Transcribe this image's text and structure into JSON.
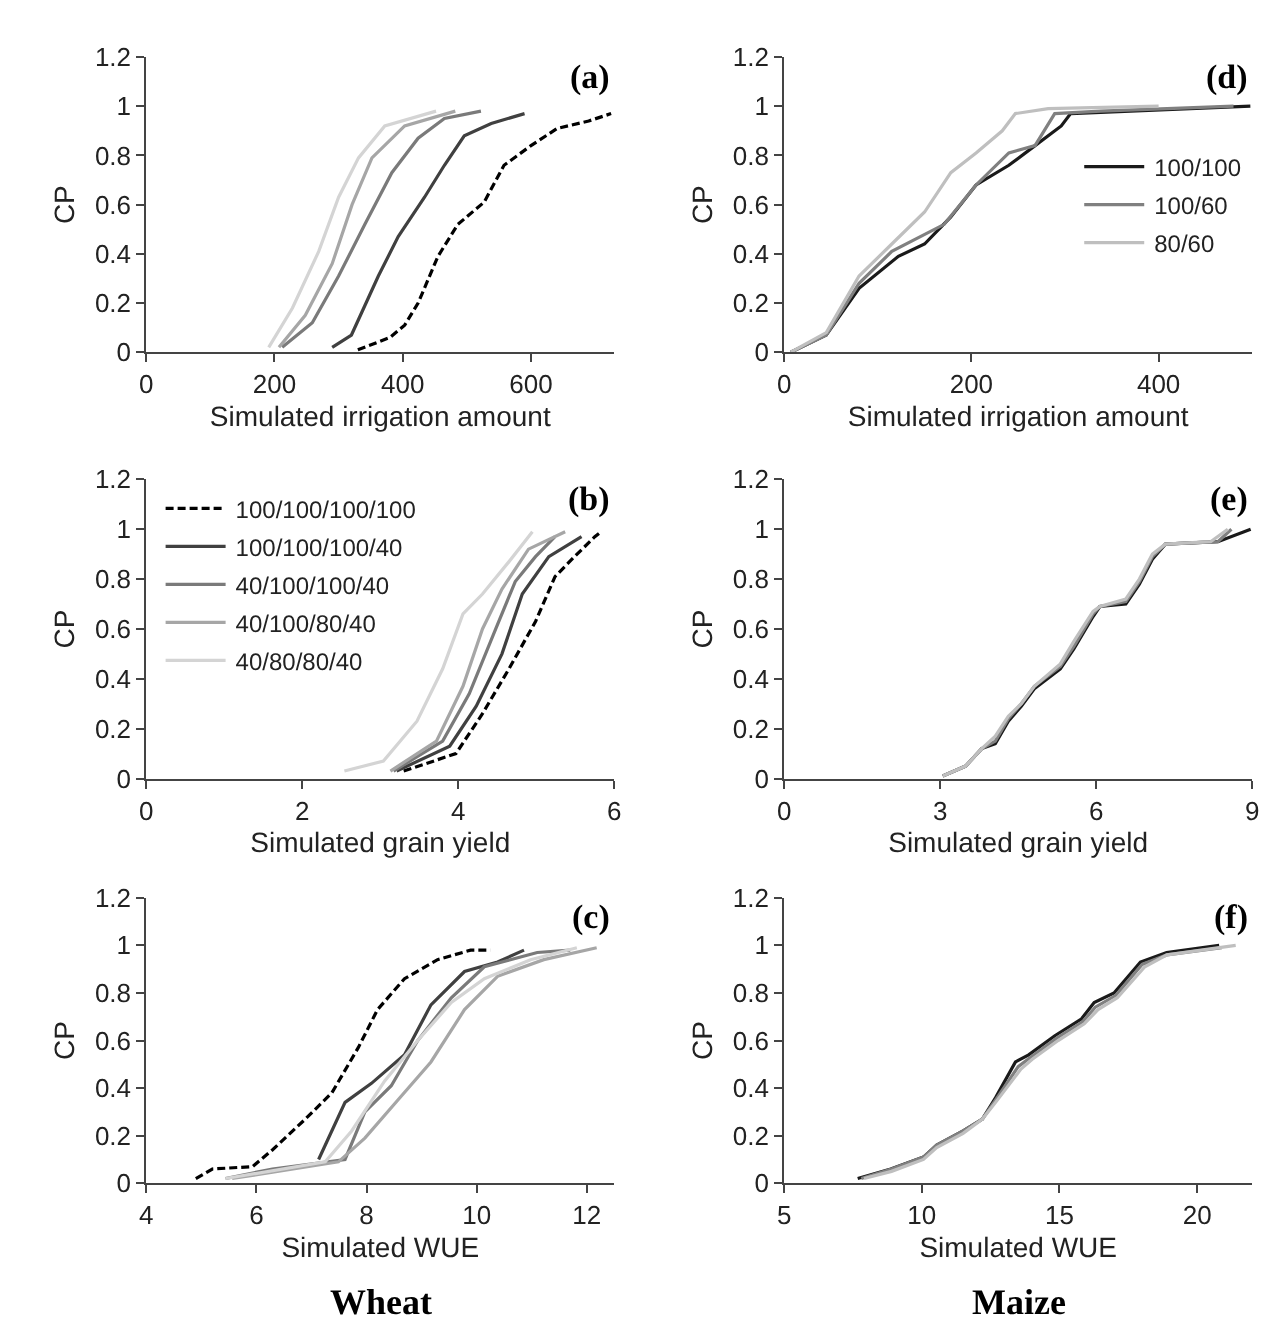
{
  "chart_data": [
    {
      "type": "line",
      "xlabel": "Simulated irrigation amount",
      "ylabel": "CP",
      "xlim": [
        0,
        730
      ],
      "xticks": [
        0,
        200,
        400,
        600
      ],
      "ylim": [
        0,
        1.2
      ],
      "yticks": [
        0,
        0.2,
        0.4,
        0.6,
        0.8,
        1,
        1.2
      ],
      "annotations": [
        "(a)"
      ],
      "series": [
        {
          "color": "#000000",
          "line_style": "dashed",
          "x": [
            330,
            380,
            403,
            424,
            455,
            486,
            527,
            558,
            600,
            641,
            690,
            725
          ],
          "values": [
            0.01,
            0.06,
            0.11,
            0.2,
            0.39,
            0.52,
            0.61,
            0.76,
            0.84,
            0.91,
            0.94,
            0.97
          ]
        },
        {
          "color": "#404040",
          "x": [
            290,
            320,
            362,
            393,
            434,
            465,
            496,
            538,
            590
          ],
          "values": [
            0.02,
            0.07,
            0.31,
            0.47,
            0.63,
            0.76,
            0.88,
            0.93,
            0.97
          ]
        },
        {
          "color": "#7a7a7a",
          "x": [
            212,
            259,
            300,
            341,
            383,
            424,
            465,
            522
          ],
          "values": [
            0.02,
            0.12,
            0.31,
            0.52,
            0.73,
            0.87,
            0.95,
            0.98
          ]
        },
        {
          "color": "#a6a6a6",
          "x": [
            207,
            248,
            290,
            321,
            352,
            403,
            482
          ],
          "values": [
            0.02,
            0.15,
            0.36,
            0.6,
            0.79,
            0.92,
            0.98
          ]
        },
        {
          "color": "#d4d4d4",
          "x": [
            191,
            228,
            269,
            300,
            331,
            372,
            452
          ],
          "values": [
            0.02,
            0.18,
            0.41,
            0.63,
            0.79,
            0.92,
            0.98
          ]
        }
      ]
    },
    {
      "type": "line",
      "xlabel": "Simulated irrigation amount",
      "ylabel": "CP",
      "xlim": [
        0,
        500
      ],
      "xticks": [
        0,
        200,
        400
      ],
      "ylim": [
        0,
        1.2
      ],
      "yticks": [
        0,
        0.2,
        0.4,
        0.6,
        0.8,
        1,
        1.2
      ],
      "annotations": [
        "(d)"
      ],
      "legend": "right",
      "series": [
        {
          "name": "100/100",
          "color": "#1a1a1a",
          "x": [
            7,
            45,
            80,
            122,
            150,
            178,
            205,
            240,
            268,
            296,
            306,
            498
          ],
          "values": [
            0,
            0.07,
            0.26,
            0.39,
            0.44,
            0.55,
            0.68,
            0.76,
            0.84,
            0.92,
            0.97,
            1.0
          ]
        },
        {
          "name": "100/60",
          "color": "#808080",
          "x": [
            7,
            45,
            80,
            115,
            171,
            205,
            240,
            268,
            289,
            338,
            480
          ],
          "values": [
            0,
            0.07,
            0.28,
            0.41,
            0.52,
            0.68,
            0.81,
            0.84,
            0.97,
            0.98,
            1.0
          ]
        },
        {
          "name": "80/60",
          "color": "#bfbfbf",
          "x": [
            7,
            45,
            80,
            115,
            150,
            178,
            205,
            233,
            247,
            282,
            400
          ],
          "values": [
            0,
            0.08,
            0.31,
            0.44,
            0.57,
            0.73,
            0.81,
            0.9,
            0.97,
            0.99,
            1.0
          ]
        }
      ]
    },
    {
      "type": "line",
      "xlabel": "Simulated grain yield",
      "ylabel": "CP",
      "xlim": [
        0,
        6
      ],
      "xticks": [
        0,
        2,
        4,
        6
      ],
      "ylim": [
        0,
        1.2
      ],
      "yticks": [
        0,
        0.2,
        0.4,
        0.6,
        0.8,
        1,
        1.2
      ],
      "annotations": [
        "(b)"
      ],
      "legend": "top left",
      "series": [
        {
          "name": "100/100/100/100",
          "color": "#000000",
          "line_style": "dashed",
          "x": [
            3.3,
            3.97,
            4.31,
            4.65,
            4.99,
            5.24,
            5.49,
            5.75,
            5.83
          ],
          "values": [
            0.03,
            0.1,
            0.26,
            0.44,
            0.63,
            0.81,
            0.89,
            0.97,
            0.99
          ]
        },
        {
          "name": "100/100/100/40",
          "color": "#404040",
          "x": [
            3.21,
            3.89,
            4.23,
            4.56,
            4.82,
            5.16,
            5.58
          ],
          "values": [
            0.03,
            0.13,
            0.29,
            0.5,
            0.74,
            0.89,
            0.97
          ]
        },
        {
          "name": "40/100/100/40",
          "color": "#7a7a7a",
          "x": [
            3.17,
            3.8,
            4.14,
            4.48,
            4.73,
            4.99,
            5.24
          ],
          "values": [
            0.03,
            0.15,
            0.34,
            0.6,
            0.79,
            0.89,
            0.97
          ]
        },
        {
          "name": "40/100/80/40",
          "color": "#a6a6a6",
          "x": [
            3.13,
            3.72,
            4.06,
            4.31,
            4.56,
            4.9,
            5.37
          ],
          "values": [
            0.03,
            0.15,
            0.37,
            0.6,
            0.76,
            0.92,
            0.99
          ]
        },
        {
          "name": "40/80/80/40",
          "color": "#d4d4d4",
          "x": [
            2.54,
            3.04,
            3.47,
            3.8,
            4.06,
            4.31,
            4.65,
            4.95
          ],
          "values": [
            0.03,
            0.07,
            0.23,
            0.44,
            0.66,
            0.74,
            0.87,
            0.99
          ]
        }
      ]
    },
    {
      "type": "line",
      "xlabel": "Simulated grain yield",
      "ylabel": "CP",
      "xlim": [
        0,
        9
      ],
      "xticks": [
        0,
        3,
        6,
        9
      ],
      "ylim": [
        0,
        1.2
      ],
      "yticks": [
        0,
        0.2,
        0.4,
        0.6,
        0.8,
        1,
        1.2
      ],
      "annotations": [
        "(e)"
      ],
      "series": [
        {
          "color": "#1a1a1a",
          "x": [
            3.05,
            3.49,
            3.8,
            4.06,
            4.31,
            4.56,
            4.81,
            5.31,
            5.57,
            5.94,
            6.07,
            6.57,
            6.83,
            7.08,
            7.33,
            8.34,
            8.97
          ],
          "values": [
            0.01,
            0.05,
            0.12,
            0.14,
            0.23,
            0.29,
            0.36,
            0.44,
            0.52,
            0.65,
            0.69,
            0.7,
            0.78,
            0.88,
            0.94,
            0.95,
            1.0
          ]
        },
        {
          "color": "#808080",
          "x": [
            3.05,
            3.49,
            3.8,
            4.06,
            4.31,
            4.56,
            4.81,
            5.31,
            5.57,
            5.94,
            6.07,
            6.57,
            6.83,
            7.08,
            7.33,
            8.34,
            8.6
          ],
          "values": [
            0.01,
            0.05,
            0.12,
            0.15,
            0.24,
            0.3,
            0.37,
            0.45,
            0.53,
            0.66,
            0.69,
            0.71,
            0.79,
            0.89,
            0.94,
            0.95,
            1.0
          ]
        },
        {
          "color": "#bfbfbf",
          "x": [
            3.05,
            3.49,
            3.8,
            4.06,
            4.31,
            4.56,
            4.81,
            5.31,
            5.57,
            5.94,
            6.07,
            6.57,
            6.83,
            7.08,
            7.33,
            8.2,
            8.53
          ],
          "values": [
            0.01,
            0.05,
            0.12,
            0.17,
            0.25,
            0.3,
            0.37,
            0.46,
            0.55,
            0.67,
            0.69,
            0.72,
            0.8,
            0.9,
            0.94,
            0.95,
            1.0
          ]
        }
      ]
    },
    {
      "type": "line",
      "xlabel": "Simulated WUE",
      "ylabel": "CP",
      "xlim": [
        4,
        12.5
      ],
      "xticks": [
        4,
        6,
        8,
        10,
        12
      ],
      "ylim": [
        0,
        1.2
      ],
      "yticks": [
        0,
        0.2,
        0.4,
        0.6,
        0.8,
        1,
        1.2
      ],
      "annotations": [
        "(c)",
        "Wheat"
      ],
      "series": [
        {
          "color": "#000000",
          "line_style": "dashed",
          "x": [
            4.9,
            5.2,
            5.93,
            6.29,
            6.89,
            7.37,
            7.85,
            8.2,
            8.69,
            9.29,
            9.89,
            10.25
          ],
          "values": [
            0.02,
            0.06,
            0.07,
            0.14,
            0.27,
            0.38,
            0.57,
            0.73,
            0.86,
            0.94,
            0.98,
            0.98
          ]
        },
        {
          "color": "#404040",
          "x": [
            7.13,
            7.61,
            8.09,
            8.69,
            9.17,
            9.78,
            10.38,
            10.86
          ],
          "values": [
            0.1,
            0.34,
            0.42,
            0.54,
            0.75,
            0.89,
            0.93,
            0.98
          ]
        },
        {
          "color": "#7a7a7a",
          "x": [
            5.44,
            6.29,
            7.61,
            7.97,
            8.45,
            8.93,
            9.54,
            10.14,
            11.1,
            11.7
          ],
          "values": [
            0.02,
            0.06,
            0.1,
            0.3,
            0.41,
            0.6,
            0.78,
            0.91,
            0.97,
            0.98
          ]
        },
        {
          "color": "#a6a6a6",
          "x": [
            5.56,
            7.49,
            7.97,
            8.57,
            9.17,
            9.78,
            10.38,
            11.22,
            12.18
          ],
          "values": [
            0.02,
            0.09,
            0.19,
            0.35,
            0.51,
            0.73,
            0.87,
            0.94,
            0.99
          ]
        },
        {
          "color": "#d4d4d4",
          "x": [
            5.44,
            7.25,
            7.73,
            8.33,
            8.93,
            9.54,
            10.14,
            10.98,
            11.82
          ],
          "values": [
            0.02,
            0.09,
            0.22,
            0.43,
            0.6,
            0.76,
            0.86,
            0.94,
            0.99
          ]
        }
      ]
    },
    {
      "type": "line",
      "xlabel": "Simulated WUE",
      "ylabel": "CP",
      "xlim": [
        5,
        22
      ],
      "xticks": [
        5,
        10,
        15,
        20
      ],
      "ylim": [
        0,
        1.2
      ],
      "yticks": [
        0,
        0.2,
        0.4,
        0.6,
        0.8,
        1,
        1.2
      ],
      "annotations": [
        "(f)",
        "Maize"
      ],
      "series": [
        {
          "color": "#1a1a1a",
          "x": [
            7.67,
            8.87,
            10.06,
            10.54,
            11.5,
            12.2,
            12.68,
            13.4,
            13.88,
            14.83,
            15.79,
            16.26,
            16.98,
            17.94,
            18.89,
            20.8
          ],
          "values": [
            0.02,
            0.06,
            0.11,
            0.16,
            0.22,
            0.27,
            0.36,
            0.51,
            0.54,
            0.62,
            0.69,
            0.76,
            0.8,
            0.93,
            0.97,
            1.0
          ]
        },
        {
          "color": "#808080",
          "x": [
            7.8,
            8.9,
            10.06,
            10.54,
            11.5,
            12.2,
            12.68,
            13.5,
            13.95,
            14.9,
            15.85,
            16.3,
            17.05,
            18.0,
            18.9,
            20.9
          ],
          "values": [
            0.02,
            0.06,
            0.11,
            0.16,
            0.22,
            0.27,
            0.35,
            0.49,
            0.53,
            0.61,
            0.68,
            0.74,
            0.79,
            0.92,
            0.96,
            0.99
          ]
        },
        {
          "color": "#bfbfbf",
          "x": [
            7.9,
            8.9,
            10.06,
            10.54,
            11.5,
            12.2,
            12.68,
            13.6,
            14.0,
            14.95,
            15.9,
            16.4,
            17.1,
            18.1,
            18.9,
            21.4
          ],
          "values": [
            0.02,
            0.05,
            0.1,
            0.15,
            0.21,
            0.27,
            0.34,
            0.48,
            0.52,
            0.6,
            0.67,
            0.73,
            0.78,
            0.91,
            0.96,
            1.0
          ]
        }
      ]
    }
  ]
}
